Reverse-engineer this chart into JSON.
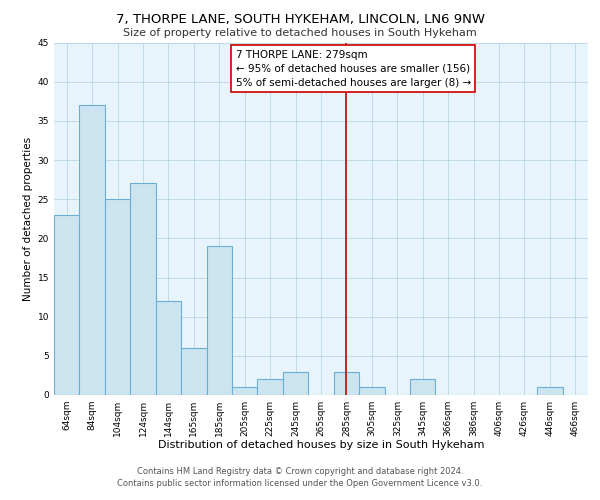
{
  "title": "7, THORPE LANE, SOUTH HYKEHAM, LINCOLN, LN6 9NW",
  "subtitle": "Size of property relative to detached houses in South Hykeham",
  "xlabel": "Distribution of detached houses by size in South Hykeham",
  "ylabel": "Number of detached properties",
  "bar_labels": [
    "64sqm",
    "84sqm",
    "104sqm",
    "124sqm",
    "144sqm",
    "165sqm",
    "185sqm",
    "205sqm",
    "225sqm",
    "245sqm",
    "265sqm",
    "285sqm",
    "305sqm",
    "325sqm",
    "345sqm",
    "366sqm",
    "386sqm",
    "406sqm",
    "426sqm",
    "446sqm",
    "466sqm"
  ],
  "bar_values": [
    23,
    37,
    25,
    27,
    12,
    6,
    19,
    1,
    2,
    3,
    0,
    3,
    1,
    0,
    2,
    0,
    0,
    0,
    0,
    1,
    0
  ],
  "bar_color": "#cce4f0",
  "bar_edge_color": "#6baed6",
  "vline_x_index": 11,
  "vline_color": "#cc0000",
  "ylim": [
    0,
    45
  ],
  "yticks": [
    0,
    5,
    10,
    15,
    20,
    25,
    30,
    35,
    40,
    45
  ],
  "annotation_title": "7 THORPE LANE: 279sqm",
  "annotation_line1": "← 95% of detached houses are smaller (156)",
  "annotation_line2": "5% of semi-detached houses are larger (8) →",
  "annotation_box_color": "#ffffff",
  "annotation_box_edge": "#cc0000",
  "footer_line1": "Contains HM Land Registry data © Crown copyright and database right 2024.",
  "footer_line2": "Contains public sector information licensed under the Open Government Licence v3.0.",
  "title_fontsize": 9.5,
  "subtitle_fontsize": 8,
  "xlabel_fontsize": 8,
  "ylabel_fontsize": 7.5,
  "tick_fontsize": 6.5,
  "footer_fontsize": 6,
  "annotation_fontsize": 7.5,
  "plot_bg_color": "#e8f4fb",
  "grid_color": "#b0cfe0"
}
